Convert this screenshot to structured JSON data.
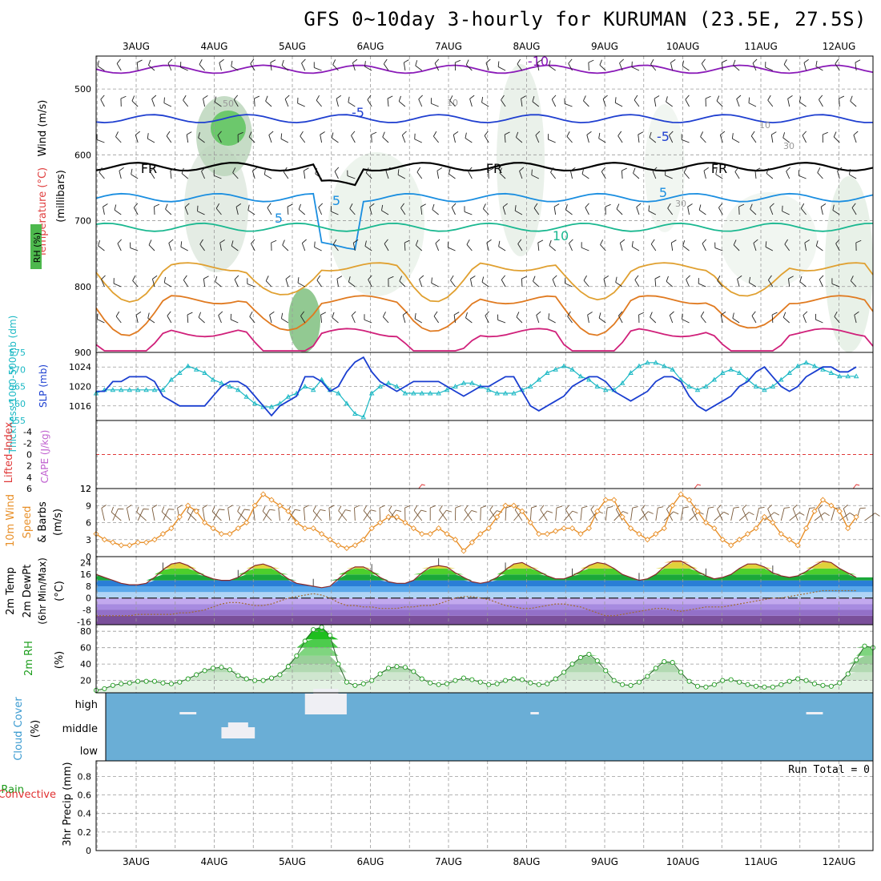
{
  "title": "GFS 0~10day 3-hourly for KURUMAN (23.5E, 27.5S)",
  "date_labels": [
    "3AUG",
    "4AUG",
    "5AUG",
    "6AUG",
    "7AUG",
    "8AUG",
    "9AUG",
    "10AUG",
    "11AUG",
    "12AUG"
  ],
  "run_total": "Run Total = 0",
  "chart_data": [
    {
      "type": "contour",
      "panel": "upper-air",
      "ylabel_parts": {
        "wind": "Wind (m/s)",
        "temperature": "Temperature (°C)",
        "millibars": "(millibars)",
        "rh": "RH (%)"
      },
      "yticks": [
        500,
        600,
        700,
        800,
        900
      ],
      "ylim": [
        900,
        450
      ],
      "contour_labels": [
        "-10",
        "-5",
        "-5",
        "FR",
        "FR",
        "FR",
        "5",
        "5",
        "5",
        "10",
        "10",
        "10",
        "30",
        "30",
        "50"
      ],
      "isotherms_c": [
        -10,
        -5,
        0,
        5,
        10,
        15,
        20,
        25
      ]
    },
    {
      "type": "line",
      "panel": "slp-thickness",
      "ylabel_thickness": "Thickness 1000-500mb (dm)",
      "ylabel_slp": "SLP (mb)",
      "thickness_ticks": [
        "575",
        "570",
        "565",
        "560",
        "555"
      ],
      "slp_ticks": [
        "1024",
        "1020",
        "1016"
      ],
      "thickness_ylim": [
        555,
        575
      ],
      "slp_ylim": [
        1013,
        1027
      ],
      "series": [
        {
          "name": "Thickness (dm)",
          "values": [
            563,
            564,
            564,
            564,
            564,
            564,
            564,
            564,
            564,
            567,
            569,
            571,
            570,
            569,
            567,
            566,
            565,
            564,
            562,
            560,
            559,
            559,
            560,
            562,
            563,
            565,
            564,
            567,
            564,
            563,
            560,
            557,
            556,
            563,
            565,
            566,
            565,
            563,
            563,
            563,
            563,
            563,
            564,
            565,
            566,
            566,
            565,
            564,
            563,
            563,
            563,
            564,
            565,
            567,
            569,
            570,
            571,
            570,
            568,
            567,
            565,
            564,
            564,
            566,
            569,
            571,
            572,
            572,
            571,
            570,
            567,
            565,
            564,
            565,
            567,
            569,
            570,
            569,
            567,
            565,
            564,
            565,
            567,
            569,
            571,
            572,
            571,
            570,
            569,
            568,
            568,
            568
          ]
        },
        {
          "name": "SLP (mb)",
          "values": [
            1019,
            1019,
            1021,
            1021,
            1022,
            1022,
            1022,
            1021,
            1018,
            1017,
            1016,
            1016,
            1016,
            1016,
            1018,
            1020,
            1021,
            1021,
            1020,
            1018,
            1016,
            1014,
            1016,
            1017,
            1018,
            1022,
            1022,
            1021,
            1019,
            1020,
            1023,
            1025,
            1026,
            1023,
            1021,
            1020,
            1019,
            1020,
            1021,
            1021,
            1021,
            1021,
            1020,
            1019,
            1018,
            1019,
            1020,
            1020,
            1021,
            1022,
            1022,
            1019,
            1016,
            1015,
            1016,
            1017,
            1018,
            1020,
            1021,
            1022,
            1022,
            1021,
            1019,
            1018,
            1017,
            1018,
            1019,
            1021,
            1022,
            1022,
            1021,
            1018,
            1016,
            1015,
            1016,
            1017,
            1018,
            1020,
            1021,
            1023,
            1024,
            1022,
            1020,
            1019,
            1020,
            1022,
            1023,
            1024,
            1024,
            1023,
            1023,
            1024
          ]
        }
      ]
    },
    {
      "type": "line",
      "panel": "stability",
      "ylabel_li": "Lifted Index",
      "ylabel_cape": "CAPE (J/kg)",
      "li_ticks": [
        "-4",
        "-2",
        "0",
        "2",
        "4",
        "6"
      ],
      "ylim": [
        -6,
        6
      ],
      "li_spikes": [
        {
          "x_index": 39,
          "value": "12"
        }
      ]
    },
    {
      "type": "line",
      "panel": "wind10m",
      "ylabel_parts": {
        "a": "10m Wind",
        "b": "Speed",
        "c": "& Barbs",
        "units": "(m/s)"
      },
      "yticks": [
        "0",
        "3",
        "6",
        "9",
        "12"
      ],
      "ylim": [
        0,
        12
      ],
      "series": [
        {
          "name": "10m wind speed",
          "values": [
            4,
            3,
            2.5,
            2,
            2,
            2.5,
            2.5,
            3,
            4,
            5,
            7,
            9,
            8,
            6,
            5,
            4,
            4,
            5,
            6,
            9,
            11,
            10,
            9,
            8,
            6,
            5,
            5,
            4,
            3,
            2,
            1.5,
            2,
            3,
            5,
            6,
            7,
            7,
            6,
            5,
            4,
            4,
            5,
            4,
            3,
            1,
            2.5,
            4,
            5,
            7,
            9,
            9,
            8,
            6,
            4,
            4,
            4.5,
            5,
            5,
            4,
            5,
            8,
            10,
            10,
            7,
            5,
            4,
            3,
            4,
            5,
            9,
            11,
            10,
            8,
            6,
            5,
            3,
            2,
            3,
            4,
            5,
            7,
            6,
            4,
            3,
            2,
            5,
            8,
            10,
            9,
            8,
            5,
            7
          ]
        }
      ]
    },
    {
      "type": "area",
      "panel": "temperature",
      "ylabel_parts": {
        "a": "2m Temp",
        "b": "2m DewPt",
        "c": "(6hr Min/Max)",
        "units": "(°C)"
      },
      "yticks": [
        "24",
        "16",
        "8",
        "0",
        "-8",
        "-16"
      ],
      "ylim": [
        -18,
        28
      ],
      "series": [
        {
          "name": "2m Temp",
          "values": [
            16,
            14,
            12,
            10,
            9,
            9,
            10,
            14,
            19,
            23,
            24,
            22,
            18,
            15,
            13,
            12,
            12,
            14,
            18,
            22,
            23,
            21,
            17,
            13,
            10,
            9,
            8,
            7,
            8,
            13,
            18,
            21,
            21,
            18,
            14,
            11,
            10,
            10,
            12,
            17,
            21,
            22,
            21,
            17,
            14,
            11,
            10,
            11,
            14,
            19,
            23,
            24,
            21,
            18,
            15,
            13,
            13,
            15,
            18,
            22,
            24,
            23,
            20,
            16,
            14,
            12,
            13,
            16,
            21,
            25,
            25,
            22,
            18,
            15,
            13,
            14,
            16,
            20,
            23,
            23,
            21,
            17,
            15,
            14,
            15,
            18,
            22,
            25,
            24,
            20,
            17,
            14
          ]
        },
        {
          "name": "2m DewPt",
          "values": [
            -12,
            -12,
            -12,
            -12,
            -12,
            -11,
            -11,
            -11,
            -11,
            -11,
            -10,
            -10,
            -9,
            -8,
            -6,
            -4,
            -3,
            -3,
            -4,
            -5,
            -5,
            -4,
            -2,
            0,
            1,
            2,
            3,
            2,
            0,
            -3,
            -5,
            -5,
            -6,
            -6,
            -7,
            -7,
            -7,
            -6,
            -6,
            -5,
            -5,
            -4,
            -2,
            0,
            1,
            1,
            0,
            -1,
            -3,
            -5,
            -6,
            -7,
            -7,
            -6,
            -5,
            -4,
            -4,
            -5,
            -6,
            -8,
            -10,
            -12,
            -12,
            -11,
            -10,
            -9,
            -8,
            -7,
            -7,
            -8,
            -9,
            -8,
            -7,
            -6,
            -6,
            -6,
            -5,
            -4,
            -3,
            -2,
            -1,
            0,
            0,
            1,
            2,
            3,
            4,
            5,
            5,
            5,
            5,
            5
          ]
        }
      ]
    },
    {
      "type": "area",
      "panel": "rh2m",
      "ylabel": "2m RH",
      "units": "(%)",
      "yticks": [
        "20",
        "40",
        "60",
        "80"
      ],
      "ylim": [
        5,
        88
      ],
      "series": [
        {
          "name": "2m RH",
          "values": [
            8,
            10,
            14,
            16,
            17,
            19,
            19,
            19,
            17,
            16,
            18,
            22,
            27,
            32,
            35,
            36,
            33,
            26,
            22,
            20,
            20,
            23,
            27,
            37,
            50,
            68,
            82,
            85,
            75,
            40,
            18,
            14,
            16,
            20,
            28,
            35,
            37,
            36,
            31,
            22,
            17,
            15,
            16,
            20,
            23,
            21,
            18,
            15,
            16,
            20,
            22,
            21,
            17,
            15,
            16,
            22,
            30,
            40,
            48,
            52,
            44,
            32,
            20,
            15,
            14,
            18,
            25,
            35,
            43,
            42,
            30,
            19,
            13,
            12,
            15,
            20,
            21,
            18,
            15,
            13,
            12,
            12,
            15,
            19,
            22,
            20,
            16,
            14,
            13,
            17,
            28,
            45,
            62,
            60
          ]
        }
      ]
    },
    {
      "type": "table",
      "panel": "cloud-cover",
      "ylabel": "Cloud Cover",
      "units": "(%)",
      "levels": [
        "high",
        "middle",
        "low"
      ],
      "blocks": [
        {
          "level": "high",
          "x_index": 10,
          "span": 2,
          "pct": 40
        },
        {
          "level": "middle",
          "x_index": 15,
          "span": 4,
          "pct": 60
        },
        {
          "level": "high",
          "x_index": 25,
          "span": 5,
          "pct": 100
        },
        {
          "level": "high",
          "x_index": 52,
          "span": 1,
          "pct": 30
        },
        {
          "level": "high",
          "x_index": 85,
          "span": 2,
          "pct": 30
        }
      ]
    },
    {
      "type": "bar",
      "panel": "precip",
      "ylabel_parts": {
        "a": "Total / Rain",
        "b": "Convective",
        "c": "3hr Precip (mm)"
      },
      "yticks": [
        "0",
        "0.2",
        "0.4",
        "0.6",
        "0.8"
      ],
      "ylim": [
        0,
        0.95
      ],
      "values": []
    }
  ],
  "colors": {
    "frame": "#000000",
    "grid": "#9a9a9a",
    "thickness": "#1ab8c4",
    "slp": "#1a3ed0",
    "li": "#e03a3a",
    "cape": "#c060d0",
    "wind": "#e8902a",
    "barb": "#7a5a3a",
    "rh": "#1e9e1e",
    "cloud": "#6aaed6",
    "cloudlbl": "#3a9ad0",
    "precip_total": "#1a9a1a",
    "precip_conv": "#e03030"
  }
}
